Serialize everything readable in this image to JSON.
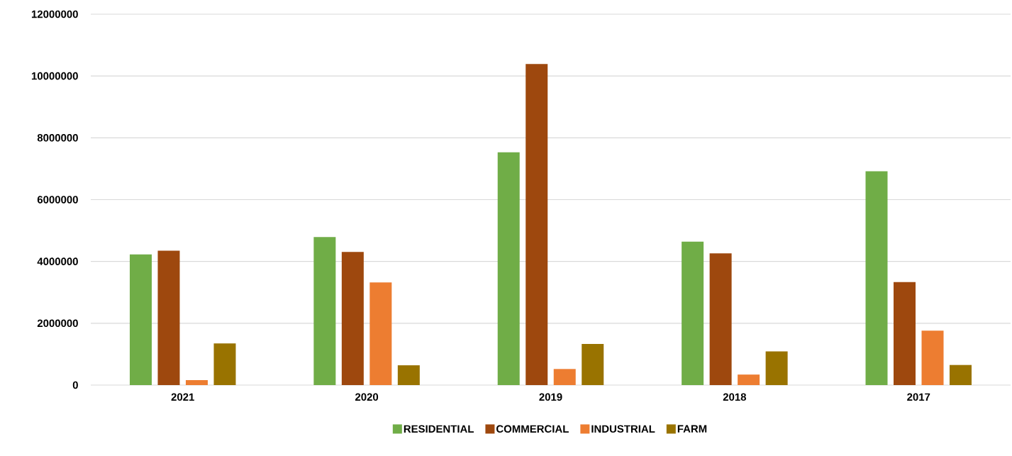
{
  "chart_data": {
    "type": "bar",
    "categories": [
      "2021",
      "2020",
      "2019",
      "2018",
      "2017"
    ],
    "series": [
      {
        "name": "RESIDENTIAL",
        "color": "#70ad47",
        "values": [
          4230000,
          4790000,
          7530000,
          4640000,
          6920000
        ]
      },
      {
        "name": "COMMERCIAL",
        "color": "#9e480e",
        "values": [
          4350000,
          4310000,
          10390000,
          4260000,
          3330000
        ]
      },
      {
        "name": "INDUSTRIAL",
        "color": "#ed7d31",
        "values": [
          160000,
          3320000,
          520000,
          340000,
          1760000
        ]
      },
      {
        "name": "FARM",
        "color": "#997300",
        "values": [
          1350000,
          640000,
          1330000,
          1090000,
          650000
        ]
      }
    ],
    "ylim": [
      0,
      12000000
    ],
    "yticks": [
      0,
      2000000,
      4000000,
      6000000,
      8000000,
      10000000,
      12000000
    ],
    "grid": "y",
    "legend": "bottom"
  }
}
